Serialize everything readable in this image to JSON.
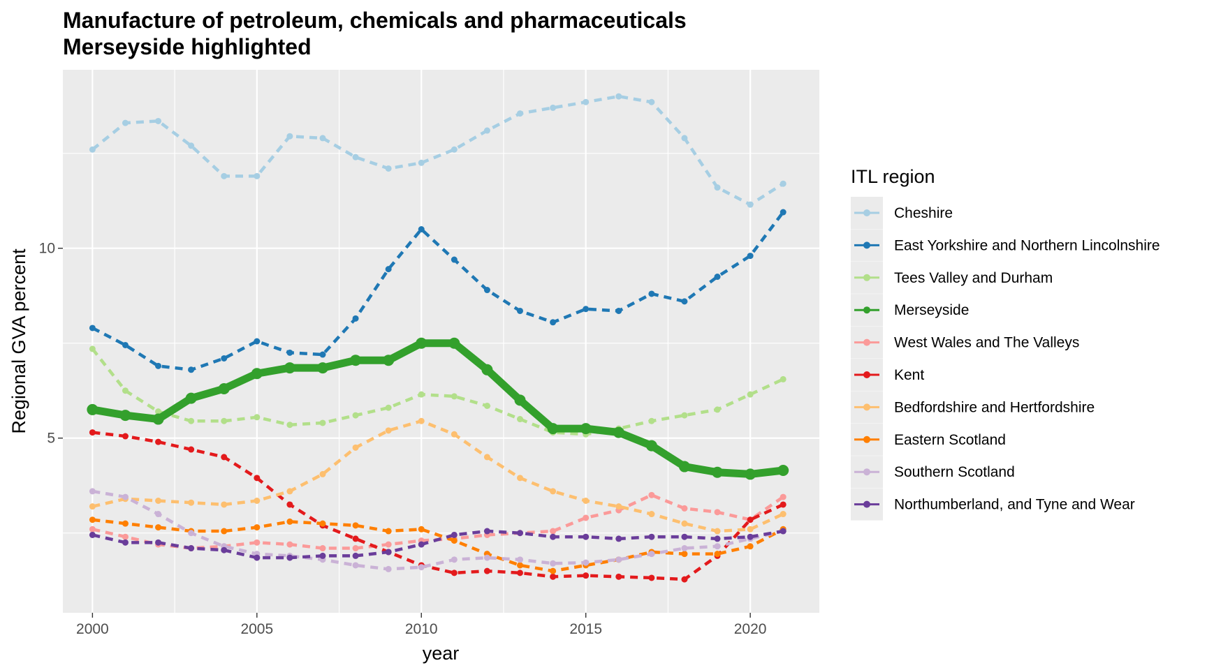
{
  "chart_data": {
    "type": "line",
    "title": "Manufacture of petroleum, chemicals and pharmaceuticals",
    "subtitle": "Merseyside highlighted",
    "xlabel": "year",
    "ylabel": "Regional GVA percent",
    "xlim": [
      1999.1,
      2022.1
    ],
    "ylim": [
      0.4,
      14.7
    ],
    "x_ticks": [
      2000,
      2005,
      2010,
      2015,
      2020
    ],
    "y_ticks": [
      5,
      10
    ],
    "grid": true,
    "legend_title": "ITL region",
    "legend_position": "right",
    "highlighted_series": "Merseyside",
    "x": [
      2000,
      2001,
      2002,
      2003,
      2004,
      2005,
      2006,
      2007,
      2008,
      2009,
      2010,
      2011,
      2012,
      2013,
      2014,
      2015,
      2016,
      2017,
      2018,
      2019,
      2020,
      2021
    ],
    "series": [
      {
        "name": "Cheshire",
        "color": "#A6CEE3",
        "values": [
          12.6,
          13.3,
          13.35,
          12.7,
          11.9,
          11.9,
          12.95,
          12.9,
          12.4,
          12.1,
          12.25,
          12.6,
          13.1,
          13.55,
          13.7,
          13.85,
          14.0,
          13.85,
          12.9,
          11.6,
          11.15,
          11.7
        ]
      },
      {
        "name": "East Yorkshire and Northern Lincolnshire",
        "color": "#1F78B4",
        "values": [
          7.9,
          7.45,
          6.9,
          6.8,
          7.1,
          7.55,
          7.25,
          7.2,
          8.15,
          9.45,
          10.5,
          9.7,
          8.9,
          8.35,
          8.05,
          8.4,
          8.35,
          8.8,
          8.6,
          9.25,
          9.8,
          10.95
        ]
      },
      {
        "name": "Tees Valley and Durham",
        "color": "#B2DF8A",
        "values": [
          7.35,
          6.25,
          5.7,
          5.45,
          5.45,
          5.55,
          5.35,
          5.4,
          5.6,
          5.8,
          6.15,
          6.1,
          5.85,
          5.5,
          5.15,
          5.1,
          5.25,
          5.45,
          5.6,
          5.75,
          6.15,
          6.55
        ]
      },
      {
        "name": "Merseyside",
        "color": "#33A02C",
        "values": [
          5.75,
          5.6,
          5.5,
          6.05,
          6.3,
          6.7,
          6.85,
          6.85,
          7.05,
          7.05,
          7.5,
          7.5,
          6.8,
          6.0,
          5.25,
          5.25,
          5.15,
          4.8,
          4.25,
          4.1,
          4.05,
          4.15
        ]
      },
      {
        "name": "West Wales and The Valleys",
        "color": "#FB9A99",
        "values": [
          2.6,
          2.4,
          2.2,
          2.1,
          2.15,
          2.25,
          2.2,
          2.1,
          2.1,
          2.2,
          2.3,
          2.35,
          2.45,
          2.5,
          2.55,
          2.9,
          3.1,
          3.5,
          3.15,
          3.05,
          2.85,
          3.45
        ]
      },
      {
        "name": "Kent",
        "color": "#E31A1C",
        "values": [
          5.15,
          5.05,
          4.9,
          4.7,
          4.5,
          3.95,
          3.25,
          2.7,
          2.35,
          2.0,
          1.65,
          1.45,
          1.5,
          1.45,
          1.35,
          1.38,
          1.35,
          1.32,
          1.28,
          1.9,
          2.85,
          3.25
        ]
      },
      {
        "name": "Bedfordshire and Hertfordshire",
        "color": "#FDBF6F",
        "values": [
          3.2,
          3.4,
          3.35,
          3.3,
          3.25,
          3.35,
          3.6,
          4.05,
          4.75,
          5.2,
          5.45,
          5.1,
          4.5,
          3.95,
          3.6,
          3.35,
          3.2,
          3.0,
          2.75,
          2.55,
          2.6,
          3.0
        ]
      },
      {
        "name": "Eastern Scotland",
        "color": "#FF7F00",
        "values": [
          2.85,
          2.75,
          2.65,
          2.55,
          2.55,
          2.65,
          2.8,
          2.75,
          2.7,
          2.55,
          2.6,
          2.3,
          1.95,
          1.65,
          1.5,
          1.65,
          1.8,
          2.0,
          1.95,
          1.95,
          2.15,
          2.6
        ]
      },
      {
        "name": "Southern Scotland",
        "color": "#CAB2D6",
        "values": [
          3.6,
          3.45,
          3.0,
          2.5,
          2.15,
          1.95,
          1.9,
          1.8,
          1.65,
          1.55,
          1.6,
          1.8,
          1.85,
          1.8,
          1.7,
          1.72,
          1.8,
          1.95,
          2.1,
          2.15,
          2.35,
          2.55
        ]
      },
      {
        "name": "Northumberland, and Tyne and Wear",
        "color": "#6A3D9A",
        "values": [
          2.45,
          2.25,
          2.25,
          2.1,
          2.05,
          1.85,
          1.85,
          1.9,
          1.9,
          2.0,
          2.2,
          2.45,
          2.55,
          2.5,
          2.4,
          2.4,
          2.35,
          2.4,
          2.4,
          2.35,
          2.4,
          2.55
        ]
      }
    ]
  }
}
